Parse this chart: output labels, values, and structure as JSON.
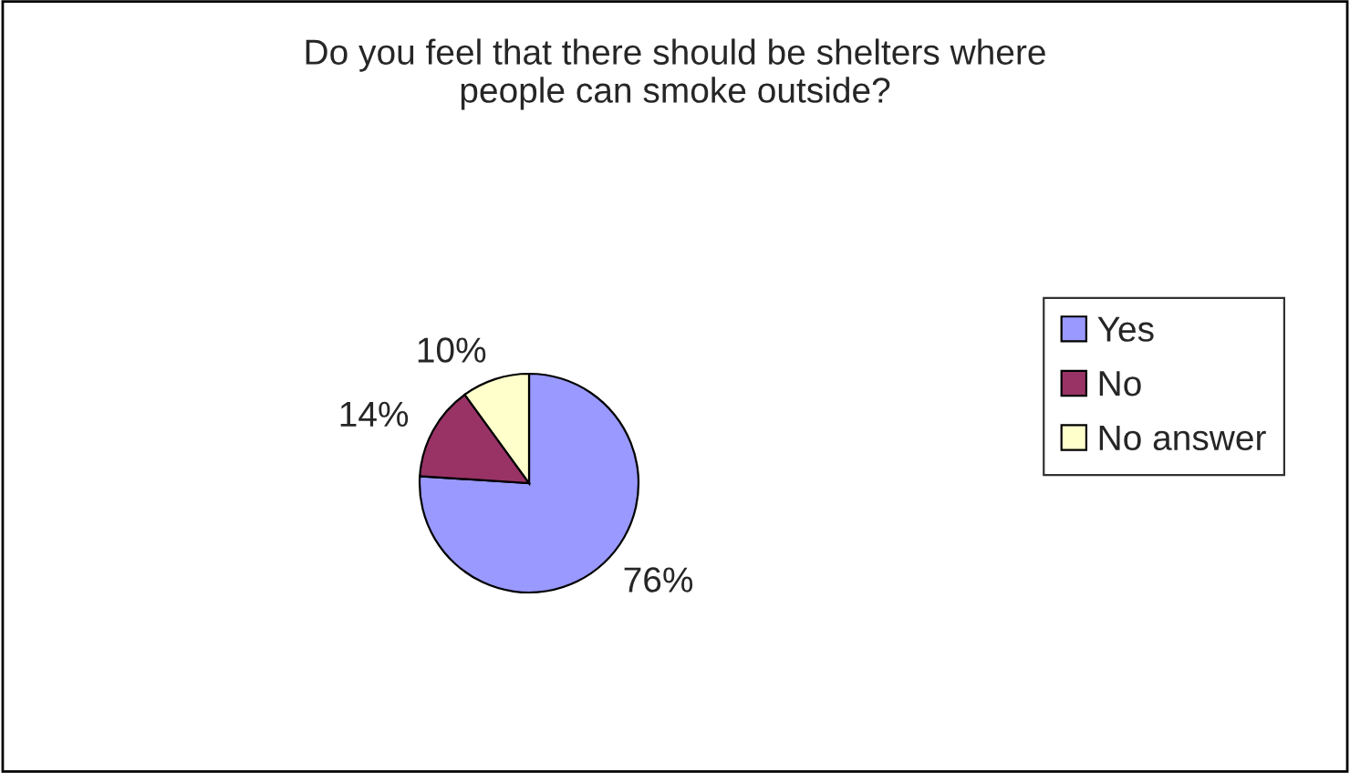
{
  "chart_data": {
    "type": "pie",
    "title": "Do you feel that there should be shelters where\npeople can smoke outside?",
    "categories": [
      "Yes",
      "No",
      "No answer"
    ],
    "values": [
      76,
      14,
      10
    ],
    "colors": [
      "#9999ff",
      "#993366",
      "#ffffcc"
    ],
    "value_labels": [
      "76%",
      "14%",
      "10%"
    ],
    "legend": "right"
  }
}
